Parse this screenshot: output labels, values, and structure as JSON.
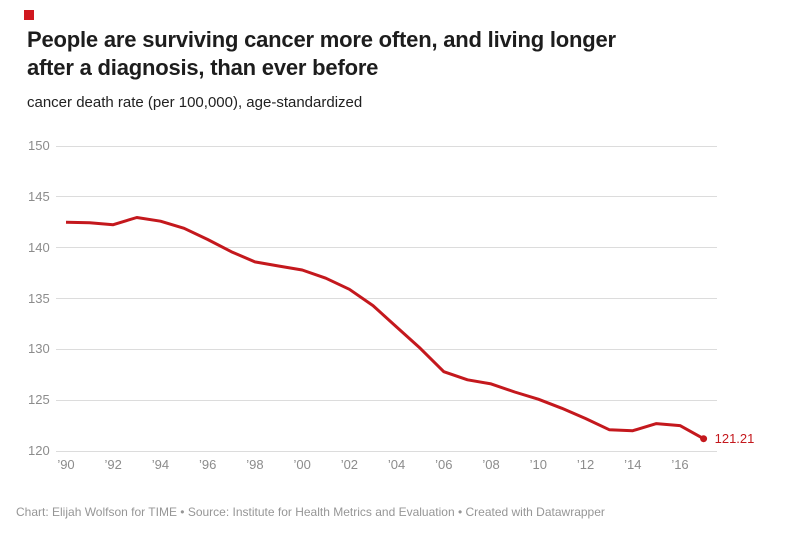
{
  "brand": {
    "square_color": "#d0181f"
  },
  "header": {
    "title_line1": "People are surviving cancer more often, and living longer",
    "title_line2": "after a diagnosis, than ever before",
    "subtitle": "cancer death rate (per 100,000), age-standardized"
  },
  "footer": {
    "text": "Chart: Elijah Wolfson for TIME • Source: Institute for Health Metrics and Evaluation • Created with Datawrapper"
  },
  "chart_data": {
    "type": "line",
    "title": "People are surviving cancer more often, and living longer after a diagnosis, than ever before",
    "subtitle": "cancer death rate (per 100,000), age-standardized",
    "x": [
      1990,
      1991,
      1992,
      1993,
      1994,
      1995,
      1996,
      1997,
      1998,
      1999,
      2000,
      2001,
      2002,
      2003,
      2004,
      2005,
      2006,
      2007,
      2008,
      2009,
      2010,
      2011,
      2012,
      2013,
      2014,
      2015,
      2016,
      2017
    ],
    "series": [
      {
        "name": "cancer death rate",
        "values": [
          142.5,
          142.45,
          142.26,
          142.97,
          142.6,
          141.9,
          140.8,
          139.6,
          138.6,
          138.2,
          137.8,
          137.0,
          135.9,
          134.3,
          132.2,
          130.1,
          127.8,
          127.0,
          126.6,
          125.8,
          125.1,
          124.2,
          123.2,
          122.1,
          122.0,
          122.7,
          122.5,
          121.21
        ]
      }
    ],
    "end_label": "121.21",
    "last_point": {
      "year": 2017,
      "value": 121.21
    },
    "xlabel": "",
    "ylabel": "cancer death rate (per 100,000), age-standardized",
    "xlim": [
      1990,
      2017
    ],
    "ylim": [
      120,
      150
    ],
    "yticks": [
      150,
      145,
      140,
      135,
      130,
      125,
      120
    ],
    "xticks": {
      "years": [
        1990,
        1992,
        1994,
        1996,
        1998,
        2000,
        2002,
        2004,
        2006,
        2008,
        2010,
        2012,
        2014,
        2016
      ],
      "labels": [
        "’90",
        "’92",
        "’94",
        "’96",
        "’98",
        "’00",
        "’02",
        "’04",
        "’06",
        "’08",
        "’10",
        "’12",
        "’14",
        "’16"
      ]
    },
    "grid": "horizontal",
    "legend": "none",
    "line_color": "#c4181d",
    "grid_color": "#dcdcdc",
    "axis_label_color": "#8c8c8c"
  }
}
